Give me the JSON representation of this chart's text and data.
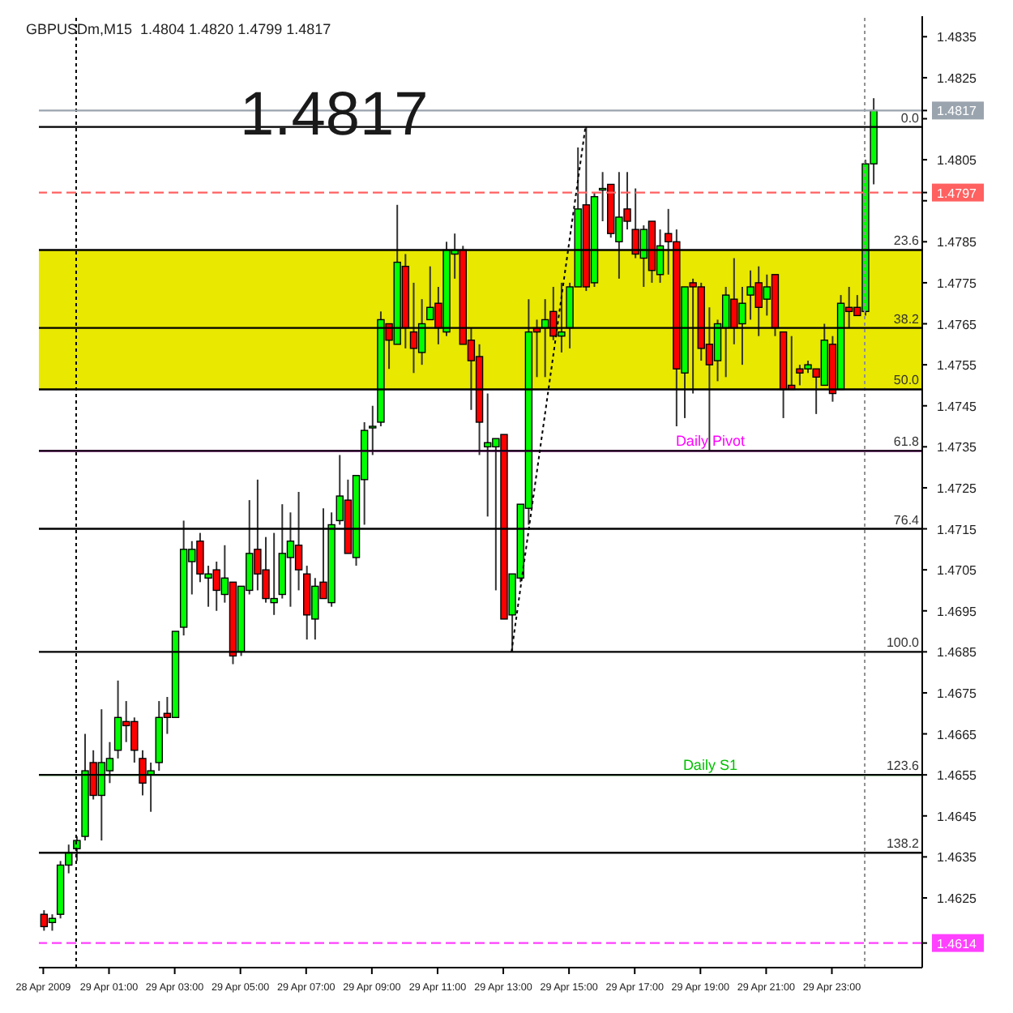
{
  "chart_data": {
    "type": "candlestick",
    "title": "GBPUSDm,M15  1.4804 1.4820 1.4799 1.4817",
    "xlim": [
      "2009-04-28T22:52",
      "2009-04-30T01:45"
    ],
    "xticks": [
      {
        "value": "2009-04-28T23:00",
        "label": "28 Apr 2009"
      },
      {
        "value": "2009-04-29T01:00",
        "label": "29 Apr 01:00"
      },
      {
        "value": "2009-04-29T03:00",
        "label": "29 Apr 03:00"
      },
      {
        "value": "2009-04-29T05:00",
        "label": "29 Apr 05:00"
      },
      {
        "value": "2009-04-29T07:00",
        "label": "29 Apr 07:00"
      },
      {
        "value": "2009-04-29T09:00",
        "label": "29 Apr 09:00"
      },
      {
        "value": "2009-04-29T11:00",
        "label": "29 Apr 11:00"
      },
      {
        "value": "2009-04-29T13:00",
        "label": "29 Apr 13:00"
      },
      {
        "value": "2009-04-29T15:00",
        "label": "29 Apr 15:00"
      },
      {
        "value": "2009-04-29T17:00",
        "label": "29 Apr 17:00"
      },
      {
        "value": "2009-04-29T19:00",
        "label": "29 Apr 19:00"
      },
      {
        "value": "2009-04-29T21:00",
        "label": "29 Apr 21:00"
      },
      {
        "value": "2009-04-29T23:00",
        "label": "29 Apr 23:00"
      }
    ],
    "ylim": [
      1.4608,
      1.484
    ],
    "yticks": [
      1.4625,
      1.4635,
      1.4645,
      1.4655,
      1.4665,
      1.4675,
      1.4685,
      1.4695,
      1.4705,
      1.4715,
      1.4725,
      1.4735,
      1.4745,
      1.4755,
      1.4765,
      1.4775,
      1.4785,
      {
        "value": 1.4795,
        "label": null
      },
      1.4805,
      {
        "value": 1.4815,
        "label": null
      },
      1.4825,
      1.4835,
      {
        "value": 1.4817,
        "label": "1.4817"
      },
      {
        "value": 1.4797,
        "label": "1.4797"
      },
      {
        "value": 1.4614,
        "label": "1.4614"
      }
    ],
    "series": [
      {
        "type": "candlestick",
        "x": [
          "2009-04-28T23:00",
          "2009-04-28T23:15",
          "2009-04-28T23:30",
          "2009-04-28T23:45",
          "2009-04-29T00:00",
          "2009-04-29T00:15",
          "2009-04-29T00:30",
          "2009-04-29T00:45",
          "2009-04-29T01:00",
          "2009-04-29T01:15",
          "2009-04-29T01:30",
          "2009-04-29T01:45",
          "2009-04-29T02:00",
          "2009-04-29T02:15",
          "2009-04-29T02:30",
          "2009-04-29T02:45",
          "2009-04-29T03:00",
          "2009-04-29T03:15",
          "2009-04-29T03:30",
          "2009-04-29T03:45",
          "2009-04-29T04:00",
          "2009-04-29T04:15",
          "2009-04-29T04:30",
          "2009-04-29T04:45",
          "2009-04-29T05:00",
          "2009-04-29T05:15",
          "2009-04-29T05:30",
          "2009-04-29T05:45",
          "2009-04-29T06:00",
          "2009-04-29T06:15",
          "2009-04-29T06:30",
          "2009-04-29T06:45",
          "2009-04-29T07:00",
          "2009-04-29T07:15",
          "2009-04-29T07:30",
          "2009-04-29T07:45",
          "2009-04-29T08:00",
          "2009-04-29T08:15",
          "2009-04-29T08:30",
          "2009-04-29T08:45",
          "2009-04-29T09:00",
          "2009-04-29T09:15",
          "2009-04-29T09:30",
          "2009-04-29T09:45",
          "2009-04-29T10:00",
          "2009-04-29T10:15",
          "2009-04-29T10:30",
          "2009-04-29T10:45",
          "2009-04-29T11:00",
          "2009-04-29T11:15",
          "2009-04-29T11:30",
          "2009-04-29T11:45",
          "2009-04-29T12:00",
          "2009-04-29T12:15",
          "2009-04-29T12:30",
          "2009-04-29T12:45",
          "2009-04-29T13:00",
          "2009-04-29T13:15",
          "2009-04-29T13:30",
          "2009-04-29T13:45",
          "2009-04-29T14:00",
          "2009-04-29T14:15",
          "2009-04-29T14:30",
          "2009-04-29T14:45",
          "2009-04-29T15:00",
          "2009-04-29T15:15",
          "2009-04-29T15:30",
          "2009-04-29T15:45",
          "2009-04-29T16:00",
          "2009-04-29T16:15",
          "2009-04-29T16:30",
          "2009-04-29T16:45",
          "2009-04-29T17:00",
          "2009-04-29T17:15",
          "2009-04-29T17:30",
          "2009-04-29T17:45",
          "2009-04-29T18:00",
          "2009-04-29T18:15",
          "2009-04-29T18:30",
          "2009-04-29T18:45",
          "2009-04-29T19:00",
          "2009-04-29T19:15",
          "2009-04-29T19:30",
          "2009-04-29T19:45",
          "2009-04-29T20:00",
          "2009-04-29T20:15",
          "2009-04-29T20:30",
          "2009-04-29T20:45",
          "2009-04-29T21:00",
          "2009-04-29T21:15",
          "2009-04-29T21:30",
          "2009-04-29T21:45",
          "2009-04-29T22:00",
          "2009-04-29T22:15",
          "2009-04-29T22:30",
          "2009-04-29T22:45",
          "2009-04-29T23:00",
          "2009-04-29T23:15",
          "2009-04-29T23:30",
          "2009-04-29T23:45",
          "2009-04-30T00:00",
          "2009-04-30T00:15"
        ],
        "ohlc": [
          [
            1.4621,
            1.4622,
            1.4617,
            1.4618
          ],
          [
            1.4619,
            1.4621,
            1.4617,
            1.462
          ],
          [
            1.4621,
            1.4634,
            1.462,
            1.4633
          ],
          [
            1.4633,
            1.4638,
            1.4631,
            1.4636
          ],
          [
            1.4637,
            1.464,
            1.4634,
            1.4639
          ],
          [
            1.464,
            1.4665,
            1.4639,
            1.4656
          ],
          [
            1.4658,
            1.4661,
            1.4649,
            1.465
          ],
          [
            1.465,
            1.4671,
            1.4639,
            1.4658
          ],
          [
            1.4656,
            1.4663,
            1.4653,
            1.4659
          ],
          [
            1.4661,
            1.4678,
            1.4659,
            1.4669
          ],
          [
            1.4668,
            1.4673,
            1.4663,
            1.4667
          ],
          [
            1.4668,
            1.4669,
            1.4658,
            1.4661
          ],
          [
            1.4659,
            1.4661,
            1.465,
            1.4653
          ],
          [
            1.4655,
            1.4658,
            1.4646,
            1.4656
          ],
          [
            1.4658,
            1.4673,
            1.4656,
            1.4669
          ],
          [
            1.467,
            1.4674,
            1.4665,
            1.4669
          ],
          [
            1.4669,
            1.469,
            1.4669,
            1.469
          ],
          [
            1.4691,
            1.4717,
            1.4689,
            1.471
          ],
          [
            1.4707,
            1.4712,
            1.4699,
            1.471
          ],
          [
            1.4712,
            1.4714,
            1.4702,
            1.4704
          ],
          [
            1.4703,
            1.4706,
            1.4696,
            1.4704
          ],
          [
            1.4705,
            1.4707,
            1.4695,
            1.47
          ],
          [
            1.4699,
            1.4711,
            1.4697,
            1.4703
          ],
          [
            1.4702,
            1.4702,
            1.4682,
            1.4684
          ],
          [
            1.4685,
            1.4701,
            1.4684,
            1.4701
          ],
          [
            1.47,
            1.4722,
            1.4699,
            1.4709
          ],
          [
            1.471,
            1.4727,
            1.47,
            1.4704
          ],
          [
            1.4705,
            1.4713,
            1.4697,
            1.4698
          ],
          [
            1.4697,
            1.4714,
            1.4694,
            1.4698
          ],
          [
            1.4699,
            1.4721,
            1.4698,
            1.4709
          ],
          [
            1.4708,
            1.4719,
            1.4696,
            1.4712
          ],
          [
            1.4711,
            1.4724,
            1.47,
            1.4705
          ],
          [
            1.4704,
            1.4706,
            1.4688,
            1.4694
          ],
          [
            1.4693,
            1.4703,
            1.4688,
            1.4701
          ],
          [
            1.4702,
            1.472,
            1.4698,
            1.4698
          ],
          [
            1.4697,
            1.4719,
            1.4696,
            1.4716
          ],
          [
            1.4717,
            1.4733,
            1.4716,
            1.4723
          ],
          [
            1.4722,
            1.4727,
            1.4709,
            1.4709
          ],
          [
            1.4708,
            1.4728,
            1.4706,
            1.4728
          ],
          [
            1.4727,
            1.4741,
            1.4716,
            1.4739
          ],
          [
            1.474,
            1.4745,
            1.4733,
            1.474
          ],
          [
            1.4741,
            1.4768,
            1.474,
            1.4766
          ],
          [
            1.4765,
            1.4765,
            1.4754,
            1.4761
          ],
          [
            1.476,
            1.4794,
            1.476,
            1.478
          ],
          [
            1.4779,
            1.4782,
            1.4759,
            1.4764
          ],
          [
            1.4763,
            1.4775,
            1.4753,
            1.4759
          ],
          [
            1.4758,
            1.4771,
            1.4755,
            1.4765
          ],
          [
            1.4766,
            1.4779,
            1.4766,
            1.4769
          ],
          [
            1.477,
            1.4774,
            1.476,
            1.4764
          ],
          [
            1.4763,
            1.4785,
            1.4762,
            1.4783
          ],
          [
            1.4782,
            1.4787,
            1.4776,
            1.4783
          ],
          [
            1.4783,
            1.4784,
            1.476,
            1.476
          ],
          [
            1.4761,
            1.4764,
            1.4744,
            1.4756
          ],
          [
            1.4757,
            1.476,
            1.4733,
            1.4741
          ],
          [
            1.4735,
            1.4748,
            1.4718,
            1.4736
          ],
          [
            1.4735,
            1.4737,
            1.47,
            1.4737
          ],
          [
            1.4738,
            1.4738,
            1.4693,
            1.4693
          ],
          [
            1.4694,
            1.4704,
            1.4685,
            1.4704
          ],
          [
            1.4703,
            1.4721,
            1.4702,
            1.4721
          ],
          [
            1.472,
            1.4771,
            1.4716,
            1.4763
          ],
          [
            1.4764,
            1.4766,
            1.4752,
            1.4763
          ],
          [
            1.4764,
            1.4771,
            1.4752,
            1.4766
          ],
          [
            1.4768,
            1.4774,
            1.4761,
            1.4762
          ],
          [
            1.4762,
            1.4775,
            1.4758,
            1.4763
          ],
          [
            1.4764,
            1.4775,
            1.4759,
            1.4774
          ],
          [
            1.4774,
            1.4808,
            1.4774,
            1.4793
          ],
          [
            1.4794,
            1.4813,
            1.4773,
            1.4774
          ],
          [
            1.4775,
            1.4797,
            1.4774,
            1.4796
          ],
          [
            1.4798,
            1.4802,
            1.479,
            1.4798
          ],
          [
            1.4799,
            1.4799,
            1.4786,
            1.4787
          ],
          [
            1.4785,
            1.4802,
            1.4776,
            1.4791
          ],
          [
            1.4793,
            1.4802,
            1.4788,
            1.479
          ],
          [
            1.4788,
            1.4798,
            1.4781,
            1.4782
          ],
          [
            1.4781,
            1.4789,
            1.4774,
            1.4788
          ],
          [
            1.479,
            1.479,
            1.4775,
            1.4778
          ],
          [
            1.4777,
            1.4788,
            1.4775,
            1.4784
          ],
          [
            1.4787,
            1.4793,
            1.4777,
            1.4785
          ],
          [
            1.4785,
            1.4788,
            1.474,
            1.4754
          ],
          [
            1.4753,
            1.4774,
            1.4742,
            1.4774
          ],
          [
            1.4775,
            1.4776,
            1.4748,
            1.4774
          ],
          [
            1.4774,
            1.4775,
            1.4756,
            1.4759
          ],
          [
            1.476,
            1.4769,
            1.4734,
            1.4755
          ],
          [
            1.4756,
            1.4766,
            1.4751,
            1.4765
          ],
          [
            1.4764,
            1.4774,
            1.4752,
            1.4772
          ],
          [
            1.4771,
            1.4781,
            1.476,
            1.4764
          ],
          [
            1.4765,
            1.4774,
            1.4755,
            1.477
          ],
          [
            1.4772,
            1.4778,
            1.4766,
            1.4774
          ],
          [
            1.4775,
            1.4779,
            1.4762,
            1.4769
          ],
          [
            1.4771,
            1.4777,
            1.4767,
            1.4774
          ],
          [
            1.4777,
            1.4777,
            1.4762,
            1.4764
          ],
          [
            1.4763,
            1.4763,
            1.4742,
            1.4749
          ],
          [
            1.475,
            1.4762,
            1.4749,
            1.4749
          ],
          [
            1.4754,
            1.4755,
            1.475,
            1.4753
          ],
          [
            1.4754,
            1.4756,
            1.4753,
            1.4755
          ],
          [
            1.4754,
            1.4754,
            1.4743,
            1.4752
          ],
          [
            1.475,
            1.4765,
            1.475,
            1.4761
          ],
          [
            1.476,
            1.4762,
            1.4746,
            1.4748
          ],
          [
            1.4749,
            1.4772,
            1.4749,
            1.477
          ],
          [
            1.4769,
            1.4774,
            1.4764,
            1.4768
          ],
          [
            1.4769,
            1.4772,
            1.4767,
            1.4767
          ],
          [
            1.4768,
            1.4805,
            1.4767,
            1.4804
          ],
          [
            1.4804,
            1.482,
            1.4799,
            1.4817
          ]
        ],
        "colors": [
          "#ff0000",
          "#00ff00",
          "#00ff00",
          "#00ff00",
          "#00ff00",
          "#00ff00",
          "#ff0000",
          "#00ff00",
          "#00ff00",
          "#00ff00",
          "#ff0000",
          "#ff0000",
          "#ff0000",
          "#00ff00",
          "#00ff00",
          "#ff0000",
          "#00ff00",
          "#00ff00",
          "#00ff00",
          "#ff0000",
          "#00ff00",
          "#ff0000",
          "#00ff00",
          "#ff0000",
          "#00ff00",
          "#00ff00",
          "#ff0000",
          "#ff0000",
          "#00ff00",
          "#00ff00",
          "#00ff00",
          "#ff0000",
          "#ff0000",
          "#00ff00",
          "#ff0000",
          "#00ff00",
          "#00ff00",
          "#ff0000",
          "#00ff00",
          "#00ff00",
          "#00ff00",
          "#00ff00",
          "#ff0000",
          "#00ff00",
          "#ff0000",
          "#ff0000",
          "#00ff00",
          "#00ff00",
          "#ff0000",
          "#00ff00",
          "#00ff00",
          "#ff0000",
          "#ff0000",
          "#ff0000",
          "#00ff00",
          "#00ff00",
          "#ff0000",
          "#00ff00",
          "#00ff00",
          "#00ff00",
          "#ff0000",
          "#00ff00",
          "#ff0000",
          "#00ff00",
          "#00ff00",
          "#00ff00",
          "#ff0000",
          "#00ff00",
          "#00ff00",
          "#ff0000",
          "#00ff00",
          "#ff0000",
          "#ff0000",
          "#00ff00",
          "#ff0000",
          "#00ff00",
          "#ff0000",
          "#ff0000",
          "#00ff00",
          "#ff0000",
          "#ff0000",
          "#ff0000",
          "#00ff00",
          "#00ff00",
          "#ff0000",
          "#00ff00",
          "#00ff00",
          "#ff0000",
          "#00ff00",
          "#ff0000",
          "#ff0000",
          "#ff0000",
          "#ff0000",
          "#00ff00",
          "#ff0000",
          "#00ff00",
          "#ff0000",
          "#00ff00",
          "#ff0000",
          "#ff0000",
          "#00ff00",
          "#00ff00"
        ]
      },
      {
        "type": "line",
        "x": [
          "2009-04-29T13:15",
          "2009-04-29T15:30"
        ],
        "values": [
          1.4685,
          1.4813
        ],
        "color": "#000000",
        "line_style": "dotted"
      }
    ],
    "bands": [
      {
        "axis": "y",
        "from": 1.4749,
        "to": 1.4783,
        "color": "#e8e800"
      }
    ],
    "ref_lines": [
      {
        "axis": "x",
        "value": "2009-04-29T00:00",
        "color": "#000000",
        "line_style": "dotted"
      },
      {
        "axis": "x",
        "value": "2009-04-30T00:00",
        "color": "#909090",
        "line_style": "dotted"
      },
      {
        "axis": "y",
        "value": 1.4797,
        "color": "#ff6060",
        "line_style": "dashed"
      },
      {
        "axis": "y",
        "value": 1.4614,
        "color": "#ff40ff",
        "line_style": "dashed"
      },
      {
        "axis": "y",
        "value": 1.4817,
        "color": "#9aa4ae",
        "line_style": "solid"
      },
      {
        "axis": "y",
        "value": 1.4734,
        "label": "Daily Pivot",
        "color": "#ff00ff",
        "line_style": "solid"
      },
      {
        "axis": "y",
        "value": 1.4655,
        "label": "Daily S1",
        "color": "#00c000",
        "line_style": "solid"
      },
      {
        "axis": "y",
        "value": 1.4813,
        "color": "#000000",
        "line_style": "solid"
      },
      {
        "axis": "y",
        "value": 1.4783,
        "color": "#000000",
        "line_style": "solid"
      },
      {
        "axis": "y",
        "value": 1.4764,
        "color": "#000000",
        "line_style": "solid"
      },
      {
        "axis": "y",
        "value": 1.4749,
        "color": "#000000",
        "line_style": "solid"
      },
      {
        "axis": "y",
        "value": 1.4734,
        "color": "#000000",
        "line_style": "solid"
      },
      {
        "axis": "y",
        "value": 1.4715,
        "color": "#000000",
        "line_style": "solid"
      },
      {
        "axis": "y",
        "value": 1.4685,
        "color": "#000000",
        "line_style": "solid"
      },
      {
        "axis": "y",
        "value": 1.4655,
        "color": "#000000",
        "line_style": "solid"
      },
      {
        "axis": "y",
        "value": 1.4636,
        "color": "#000000",
        "line_style": "solid"
      }
    ],
    "annotations": [
      "1.4817",
      {
        "text": "0.0",
        "x": "2009-04-30T01:45",
        "y": 1.4813
      },
      {
        "text": "23.6",
        "x": "2009-04-30T01:45",
        "y": 1.4783
      },
      {
        "text": "38.2",
        "x": "2009-04-30T01:45",
        "y": 1.4764
      },
      {
        "text": "50.0",
        "x": "2009-04-30T01:45",
        "y": 1.4749
      },
      {
        "text": "61.8",
        "x": "2009-04-30T01:45",
        "y": 1.4734
      },
      {
        "text": "76.4",
        "x": "2009-04-30T01:45",
        "y": 1.4715
      },
      {
        "text": "100.0",
        "x": "2009-04-30T01:45",
        "y": 1.4685
      },
      {
        "text": "123.6",
        "x": "2009-04-30T01:45",
        "y": 1.4655
      },
      {
        "text": "138.2",
        "x": "2009-04-30T01:45",
        "y": 1.4636
      }
    ]
  }
}
